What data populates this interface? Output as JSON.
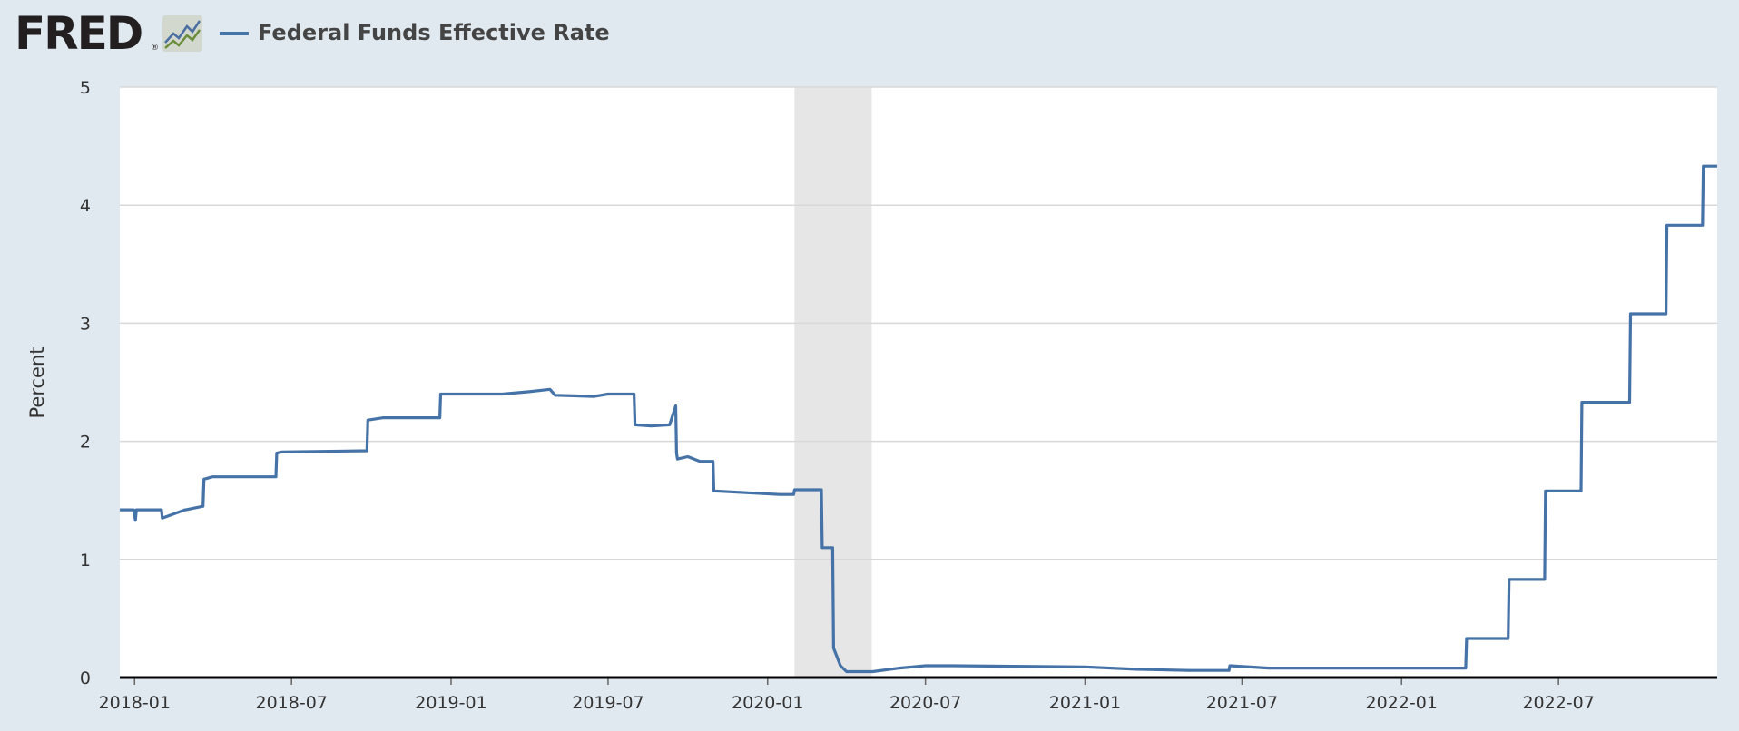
{
  "header": {
    "logo_text": "FRED",
    "logo_reg": "®",
    "legend_label": "Federal Funds Effective Rate"
  },
  "colors": {
    "page_bg": "#e1e9f0",
    "plot_bg": "#ffffff",
    "series": "#4572a7",
    "recession": "#e6e6e6",
    "grid": "#d8d8d8",
    "axis": "#000000"
  },
  "icons": [
    "fred-chart-icon"
  ],
  "chart_data": {
    "type": "line",
    "title": "",
    "xlabel": "",
    "ylabel": "Percent",
    "ylim": [
      0,
      5
    ],
    "xlim": [
      "2017-12-15",
      "2022-12-31"
    ],
    "grid": true,
    "legend": "top-left",
    "yticks": [
      0,
      1,
      2,
      3,
      4,
      5
    ],
    "xticks": [
      "2018-01",
      "2018-07",
      "2019-01",
      "2019-07",
      "2020-01",
      "2020-07",
      "2021-01",
      "2021-07",
      "2022-01",
      "2022-07"
    ],
    "recession": {
      "start": "2020-02-01",
      "end": "2020-04-30"
    },
    "series": [
      {
        "name": "Federal Funds Effective Rate",
        "x": [
          "2017-12-15",
          "2017-12-31",
          "2018-01-02",
          "2018-01-03",
          "2018-02-01",
          "2018-02-02",
          "2018-02-28",
          "2018-03-01",
          "2018-03-21",
          "2018-03-22",
          "2018-04-01",
          "2018-06-13",
          "2018-06-14",
          "2018-06-20",
          "2018-09-26",
          "2018-09-27",
          "2018-10-15",
          "2018-12-19",
          "2018-12-20",
          "2019-03-01",
          "2019-04-01",
          "2019-04-25",
          "2019-05-01",
          "2019-06-15",
          "2019-07-01",
          "2019-07-31",
          "2019-08-01",
          "2019-08-20",
          "2019-09-10",
          "2019-09-17",
          "2019-09-18",
          "2019-09-19",
          "2019-10-01",
          "2019-10-15",
          "2019-10-30",
          "2019-10-31",
          "2020-01-15",
          "2020-01-31",
          "2020-02-01",
          "2020-03-03",
          "2020-03-04",
          "2020-03-16",
          "2020-03-17",
          "2020-03-25",
          "2020-04-01",
          "2020-05-01",
          "2020-06-01",
          "2020-07-01",
          "2020-08-01",
          "2021-01-01",
          "2021-03-01",
          "2021-05-01",
          "2021-06-16",
          "2021-06-17",
          "2021-08-01",
          "2022-03-16",
          "2022-03-17",
          "2022-05-04",
          "2022-05-05",
          "2022-06-15",
          "2022-06-16",
          "2022-07-27",
          "2022-07-28",
          "2022-09-21",
          "2022-09-22",
          "2022-11-02",
          "2022-11-03",
          "2022-12-14",
          "2022-12-15",
          "2022-12-31"
        ],
        "values": [
          1.42,
          1.42,
          1.33,
          1.42,
          1.42,
          1.35,
          1.42,
          1.42,
          1.45,
          1.68,
          1.7,
          1.7,
          1.9,
          1.91,
          1.92,
          2.18,
          2.2,
          2.2,
          2.4,
          2.4,
          2.42,
          2.44,
          2.39,
          2.38,
          2.4,
          2.4,
          2.14,
          2.13,
          2.14,
          2.3,
          1.9,
          1.85,
          1.87,
          1.83,
          1.83,
          1.58,
          1.55,
          1.55,
          1.59,
          1.59,
          1.1,
          1.1,
          0.25,
          0.1,
          0.05,
          0.05,
          0.08,
          0.1,
          0.1,
          0.09,
          0.07,
          0.06,
          0.06,
          0.1,
          0.08,
          0.08,
          0.33,
          0.33,
          0.83,
          0.83,
          1.58,
          1.58,
          2.33,
          2.33,
          3.08,
          3.08,
          3.83,
          3.83,
          4.33,
          4.33
        ]
      }
    ]
  }
}
